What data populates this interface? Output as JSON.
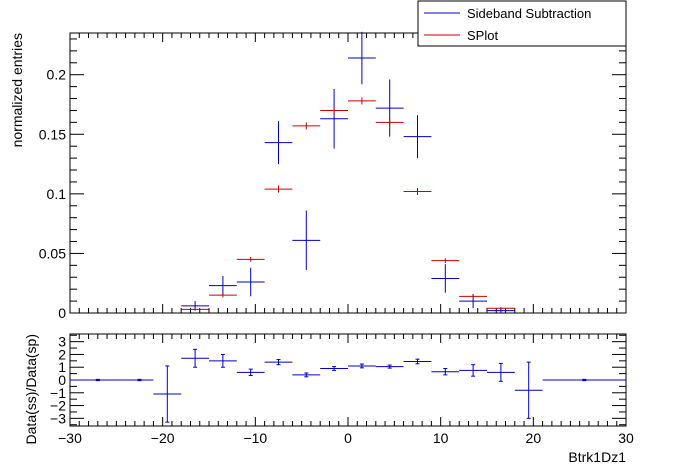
{
  "chart_data": [
    {
      "type": "scatter",
      "panel": "main",
      "xlabel": "Btrk1Dz1",
      "ylabel": "normalized entries",
      "xlim": [
        -30,
        30
      ],
      "ylim": [
        0,
        0.235
      ],
      "x_ticks": [
        -30,
        -20,
        -10,
        0,
        10,
        20,
        30
      ],
      "y_ticks": [
        0,
        0.05,
        0.1,
        0.15,
        0.2
      ],
      "y_tick_labels": [
        "0",
        "0.05",
        "0.1",
        "0.15",
        "0.2"
      ],
      "legend": {
        "placement": "top-right"
      },
      "series": [
        {
          "name": "Sideband Subtraction",
          "color": "#0000cc",
          "points": [
            {
              "x": -16.5,
              "xerr": 1.5,
              "y": 0.006,
              "yerr": 0.004
            },
            {
              "x": -13.5,
              "xerr": 1.5,
              "y": 0.023,
              "yerr": 0.008
            },
            {
              "x": -10.5,
              "xerr": 1.5,
              "y": 0.026,
              "yerr": 0.012
            },
            {
              "x": -7.5,
              "xerr": 1.5,
              "y": 0.143,
              "yerr": 0.018
            },
            {
              "x": -4.5,
              "xerr": 1.5,
              "y": 0.061,
              "yerr": 0.025
            },
            {
              "x": -1.5,
              "xerr": 1.5,
              "y": 0.163,
              "yerr": 0.025
            },
            {
              "x": 1.5,
              "xerr": 1.5,
              "y": 0.214,
              "yerr": 0.022
            },
            {
              "x": 4.5,
              "xerr": 1.5,
              "y": 0.172,
              "yerr": 0.024
            },
            {
              "x": 7.5,
              "xerr": 1.5,
              "y": 0.148,
              "yerr": 0.018
            },
            {
              "x": 10.5,
              "xerr": 1.5,
              "y": 0.029,
              "yerr": 0.012
            },
            {
              "x": 13.5,
              "xerr": 1.5,
              "y": 0.01,
              "yerr": 0.006
            },
            {
              "x": 16.5,
              "xerr": 1.5,
              "y": 0.002,
              "yerr": 0.002
            }
          ]
        },
        {
          "name": "SPlot",
          "color": "#cc0000",
          "points": [
            {
              "x": -16.5,
              "xerr": 1.5,
              "y": 0.003,
              "yerr": 0.001
            },
            {
              "x": -13.5,
              "xerr": 1.5,
              "y": 0.015,
              "yerr": 0.002
            },
            {
              "x": -10.5,
              "xerr": 1.5,
              "y": 0.045,
              "yerr": 0.002
            },
            {
              "x": -7.5,
              "xerr": 1.5,
              "y": 0.104,
              "yerr": 0.003
            },
            {
              "x": -4.5,
              "xerr": 1.5,
              "y": 0.157,
              "yerr": 0.003
            },
            {
              "x": -1.5,
              "xerr": 1.5,
              "y": 0.17,
              "yerr": 0.003
            },
            {
              "x": 1.5,
              "xerr": 1.5,
              "y": 0.178,
              "yerr": 0.003
            },
            {
              "x": 4.5,
              "xerr": 1.5,
              "y": 0.16,
              "yerr": 0.003
            },
            {
              "x": 7.5,
              "xerr": 1.5,
              "y": 0.102,
              "yerr": 0.003
            },
            {
              "x": 10.5,
              "xerr": 1.5,
              "y": 0.044,
              "yerr": 0.002
            },
            {
              "x": 13.5,
              "xerr": 1.5,
              "y": 0.014,
              "yerr": 0.001
            },
            {
              "x": 16.5,
              "xerr": 1.5,
              "y": 0.004,
              "yerr": 0.001
            }
          ]
        }
      ]
    },
    {
      "type": "scatter",
      "panel": "ratio",
      "xlabel": "Btrk1Dz1",
      "ylabel": "Data(ss)/Data(sp)",
      "xlim": [
        -30,
        30
      ],
      "ylim": [
        -3.6,
        3.6
      ],
      "x_ticks": [
        -30,
        -20,
        -10,
        0,
        10,
        20,
        30
      ],
      "x_tick_labels": [
        "−30",
        "−20",
        "−10",
        "0",
        "10",
        "20",
        "30"
      ],
      "y_ticks": [
        -3,
        -2,
        -1,
        0,
        1,
        2,
        3
      ],
      "y_tick_labels": [
        "−3",
        "−2",
        "−1",
        "0",
        "1",
        "2",
        "3"
      ],
      "series": [
        {
          "name": "Data(ss)/Data(sp)",
          "color": "#0000cc",
          "points": [
            {
              "x": -27,
              "xerr": 3,
              "y": 0,
              "yerr": 0.05
            },
            {
              "x": -22.5,
              "xerr": 1.5,
              "y": 0,
              "yerr": 0.05
            },
            {
              "x": -19.5,
              "xerr": 1.5,
              "y": -1.1,
              "yerr": 2.2
            },
            {
              "x": -16.5,
              "xerr": 1.5,
              "y": 1.7,
              "yerr": 0.7
            },
            {
              "x": -13.5,
              "xerr": 1.5,
              "y": 1.5,
              "yerr": 0.5
            },
            {
              "x": -10.5,
              "xerr": 1.5,
              "y": 0.6,
              "yerr": 0.25
            },
            {
              "x": -7.5,
              "xerr": 1.5,
              "y": 1.4,
              "yerr": 0.2
            },
            {
              "x": -4.5,
              "xerr": 1.5,
              "y": 0.4,
              "yerr": 0.15
            },
            {
              "x": -1.5,
              "xerr": 1.5,
              "y": 0.9,
              "yerr": 0.15
            },
            {
              "x": 1.5,
              "xerr": 1.5,
              "y": 1.1,
              "yerr": 0.15
            },
            {
              "x": 4.5,
              "xerr": 1.5,
              "y": 1.05,
              "yerr": 0.12
            },
            {
              "x": 7.5,
              "xerr": 1.5,
              "y": 1.45,
              "yerr": 0.18
            },
            {
              "x": 10.5,
              "xerr": 1.5,
              "y": 0.65,
              "yerr": 0.25
            },
            {
              "x": 13.5,
              "xerr": 1.5,
              "y": 0.75,
              "yerr": 0.45
            },
            {
              "x": 16.5,
              "xerr": 1.5,
              "y": 0.6,
              "yerr": 0.7
            },
            {
              "x": 19.5,
              "xerr": 1.5,
              "y": -0.8,
              "yerr": 2.2
            },
            {
              "x": 25.5,
              "xerr": 4.5,
              "y": 0,
              "yerr": 0.05
            }
          ]
        }
      ]
    }
  ]
}
